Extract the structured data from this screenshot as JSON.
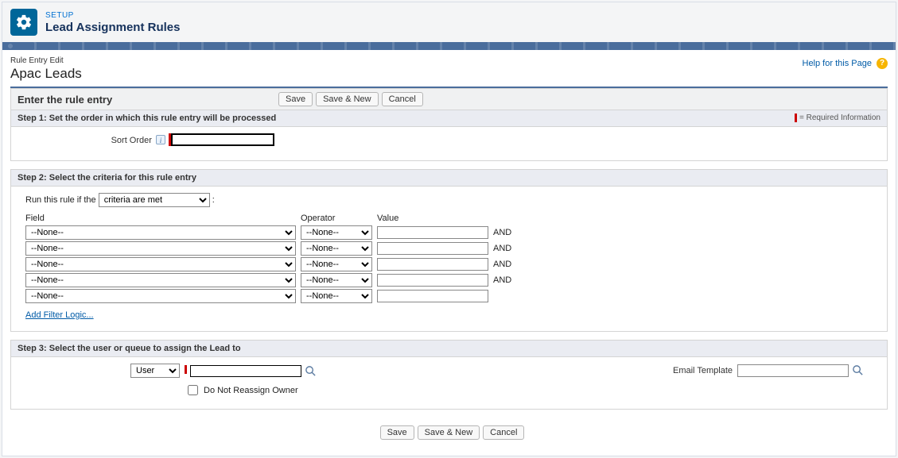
{
  "header": {
    "setup_label": "SETUP",
    "page_title": "Lead Assignment Rules"
  },
  "help": {
    "link_text": "Help for this Page",
    "icon_glyph": "?"
  },
  "record": {
    "breadcrumb": "Rule Entry Edit",
    "name": "Apac Leads"
  },
  "section": {
    "enter_title": "Enter the rule entry"
  },
  "buttons": {
    "save": "Save",
    "save_new": "Save & New",
    "cancel": "Cancel"
  },
  "step1": {
    "title": "Step 1:  Set the order in which this rule entry will be processed",
    "required_note": " = Required Information",
    "sort_order_label": "Sort Order",
    "sort_order_value": ""
  },
  "step2": {
    "title": "Step 2:  Select the criteria for this rule entry",
    "run_label": "Run this rule if the",
    "run_options": [
      "criteria are met"
    ],
    "run_selected": "criteria are met",
    "col_field": "Field",
    "col_operator": "Operator",
    "col_value": "Value",
    "rows": [
      {
        "field": "--None--",
        "operator": "--None--",
        "value": "",
        "and": "AND"
      },
      {
        "field": "--None--",
        "operator": "--None--",
        "value": "",
        "and": "AND"
      },
      {
        "field": "--None--",
        "operator": "--None--",
        "value": "",
        "and": "AND"
      },
      {
        "field": "--None--",
        "operator": "--None--",
        "value": "",
        "and": "AND"
      },
      {
        "field": "--None--",
        "operator": "--None--",
        "value": "",
        "and": ""
      }
    ],
    "add_filter_logic": "Add Filter Logic..."
  },
  "step3": {
    "title": "Step 3:  Select the user or queue to assign the Lead to",
    "assignee_type_options": [
      "User"
    ],
    "assignee_type_selected": "User",
    "assignee_value": "",
    "do_not_reassign_label": "Do Not Reassign Owner",
    "do_not_reassign_checked": false,
    "email_template_label": "Email Template",
    "email_template_value": ""
  },
  "colors": {
    "accent": "#4a6d9c",
    "setup_icon_bg": "#006699",
    "required": "#c00",
    "link": "#015ba7",
    "help_icon": "#f7b500"
  }
}
